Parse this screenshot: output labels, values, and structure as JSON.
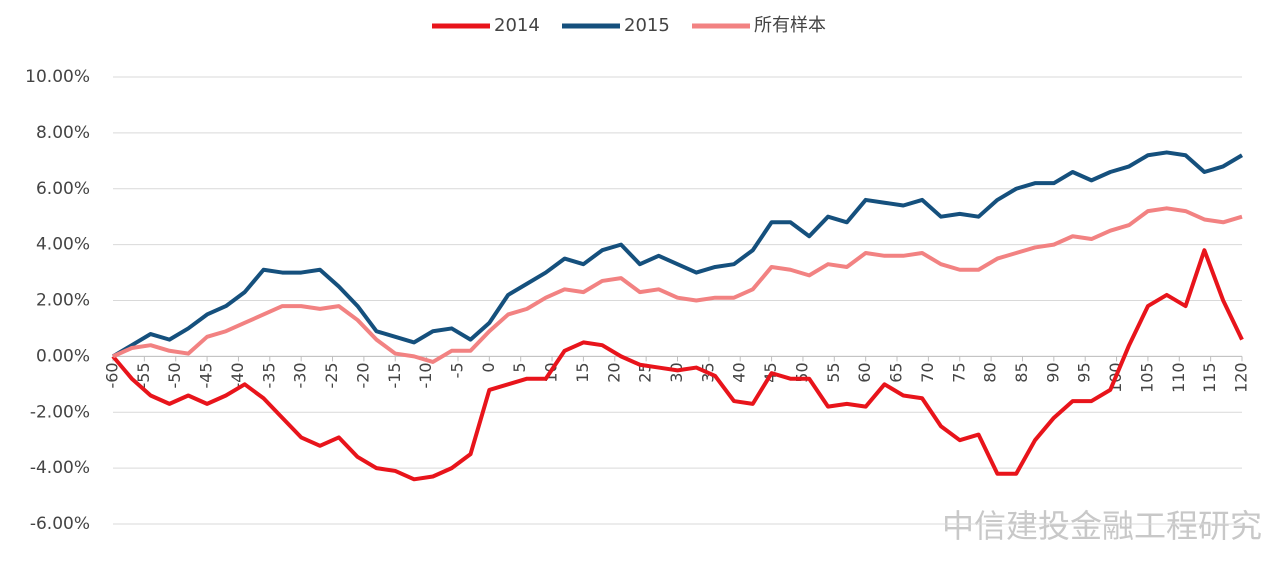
{
  "chart_data": {
    "type": "line",
    "x": [
      -60,
      -57,
      -54,
      -51,
      -48,
      -45,
      -42,
      -39,
      -36,
      -33,
      -30,
      -27,
      -24,
      -21,
      -18,
      -15,
      -12,
      -9,
      -6,
      -3,
      0,
      3,
      6,
      9,
      12,
      15,
      18,
      21,
      24,
      27,
      30,
      33,
      36,
      39,
      42,
      45,
      48,
      51,
      54,
      57,
      60,
      63,
      66,
      69,
      72,
      75,
      78,
      81,
      84,
      87,
      90,
      93,
      96,
      99,
      102,
      105,
      108,
      111,
      114,
      117,
      120
    ],
    "series": [
      {
        "name": "2014",
        "color": "#e8141b",
        "values": [
          0,
          -0.8,
          -1.4,
          -1.7,
          -1.4,
          -1.7,
          -1.4,
          -1.0,
          -1.5,
          -2.2,
          -2.9,
          -3.2,
          -2.9,
          -3.6,
          -4.0,
          -4.1,
          -4.4,
          -4.3,
          -4.0,
          -3.5,
          -1.2,
          -1.0,
          -0.8,
          -0.8,
          0.2,
          0.5,
          0.4,
          0.0,
          -0.3,
          -0.4,
          -0.5,
          -0.4,
          -0.7,
          -1.6,
          -1.7,
          -0.6,
          -0.8,
          -0.8,
          -1.8,
          -1.7,
          -1.8,
          -1.0,
          -1.4,
          -1.5,
          -2.5,
          -3.0,
          -2.8,
          -4.2,
          -4.2,
          -3.0,
          -2.2,
          -1.6,
          -1.6,
          -1.2,
          0.4,
          1.8,
          2.2,
          1.8,
          3.8,
          2.0,
          0.6
        ]
      },
      {
        "name": "2015",
        "color": "#15507d",
        "values": [
          0,
          0.4,
          0.8,
          0.6,
          1.0,
          1.5,
          1.8,
          2.3,
          3.1,
          3.0,
          3.0,
          3.1,
          2.5,
          1.8,
          0.9,
          0.7,
          0.5,
          0.9,
          1.0,
          0.6,
          1.2,
          2.2,
          2.6,
          3.0,
          3.5,
          3.3,
          3.8,
          4.0,
          3.3,
          3.6,
          3.3,
          3.0,
          3.2,
          3.3,
          3.8,
          4.8,
          4.8,
          4.3,
          5.0,
          4.8,
          5.6,
          5.5,
          5.4,
          5.6,
          5.0,
          5.1,
          5.0,
          5.6,
          6.0,
          6.2,
          6.2,
          6.6,
          6.3,
          6.6,
          6.8,
          7.2,
          7.3,
          7.2,
          6.6,
          6.8,
          7.2
        ]
      },
      {
        "name": "所有样本",
        "color": "#f28282",
        "values": [
          0,
          0.3,
          0.4,
          0.2,
          0.1,
          0.7,
          0.9,
          1.2,
          1.5,
          1.8,
          1.8,
          1.7,
          1.8,
          1.3,
          0.6,
          0.1,
          0.0,
          -0.2,
          0.2,
          0.2,
          0.9,
          1.5,
          1.7,
          2.1,
          2.4,
          2.3,
          2.7,
          2.8,
          2.3,
          2.4,
          2.1,
          2.0,
          2.1,
          2.1,
          2.4,
          3.2,
          3.1,
          2.9,
          3.3,
          3.2,
          3.7,
          3.6,
          3.6,
          3.7,
          3.3,
          3.1,
          3.1,
          3.5,
          3.7,
          3.9,
          4.0,
          4.3,
          4.2,
          4.5,
          4.7,
          5.2,
          5.3,
          5.2,
          4.9,
          4.8,
          5.0
        ]
      }
    ],
    "xlim": [
      -60,
      120
    ],
    "xticks": [
      -60,
      -55,
      -50,
      -45,
      -40,
      -35,
      -30,
      -25,
      -20,
      -15,
      -10,
      -5,
      0,
      5,
      10,
      15,
      20,
      25,
      30,
      35,
      40,
      45,
      50,
      55,
      60,
      65,
      70,
      75,
      80,
      85,
      90,
      95,
      100,
      105,
      110,
      115,
      120
    ],
    "ylim": [
      -6,
      10
    ],
    "yticks": [
      {
        "value": -6,
        "label": "-6.00%"
      },
      {
        "value": -4,
        "label": "-4.00%"
      },
      {
        "value": -2,
        "label": "-2.00%"
      },
      {
        "value": 0,
        "label": "0.00%"
      },
      {
        "value": 2,
        "label": "2.00%"
      },
      {
        "value": 4,
        "label": "4.00%"
      },
      {
        "value": 6,
        "label": "6.00%"
      },
      {
        "value": 8,
        "label": "8.00%"
      },
      {
        "value": 10,
        "label": "10.00%"
      }
    ],
    "grid": true,
    "legend": "top",
    "watermark": "中信建投金融工程研究"
  }
}
